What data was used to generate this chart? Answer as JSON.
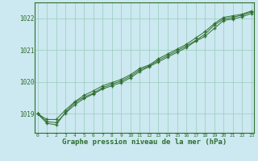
{
  "title": "Graphe pression niveau de la mer (hPa)",
  "background_color": "#cce8f0",
  "grid_color": "#99ccbb",
  "line_color": "#2d6e2d",
  "marker_color": "#2d6e2d",
  "x_min": 0,
  "x_max": 23,
  "y_min": 1018.4,
  "y_max": 1022.5,
  "yticks": [
    1019,
    1020,
    1021,
    1022
  ],
  "xticks": [
    0,
    1,
    2,
    3,
    4,
    5,
    6,
    7,
    8,
    9,
    10,
    11,
    12,
    13,
    14,
    15,
    16,
    17,
    18,
    19,
    20,
    21,
    22,
    23
  ],
  "series": [
    [
      1019.0,
      1018.7,
      1018.65,
      1019.05,
      1019.35,
      1019.52,
      1019.65,
      1019.82,
      1019.93,
      1020.03,
      1020.18,
      1020.38,
      1020.5,
      1020.68,
      1020.83,
      1020.98,
      1021.13,
      1021.3,
      1021.5,
      1021.78,
      1021.98,
      1022.03,
      1022.1,
      1022.2
    ],
    [
      1019.0,
      1018.75,
      1018.72,
      1019.02,
      1019.28,
      1019.48,
      1019.62,
      1019.78,
      1019.88,
      1019.98,
      1020.13,
      1020.33,
      1020.48,
      1020.63,
      1020.78,
      1020.93,
      1021.08,
      1021.28,
      1021.43,
      1021.68,
      1021.93,
      1021.98,
      1022.05,
      1022.15
    ],
    [
      1019.0,
      1018.82,
      1018.82,
      1019.12,
      1019.38,
      1019.58,
      1019.72,
      1019.88,
      1019.98,
      1020.08,
      1020.23,
      1020.43,
      1020.53,
      1020.73,
      1020.88,
      1021.03,
      1021.18,
      1021.38,
      1021.58,
      1021.83,
      1022.03,
      1022.08,
      1022.13,
      1022.23
    ]
  ]
}
